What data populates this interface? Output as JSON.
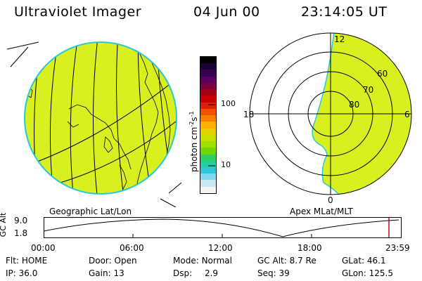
{
  "header": {
    "instrument": "Ultraviolet Imager",
    "date": "04 Jun 00",
    "time": "23:14:05 UT"
  },
  "colorbar": {
    "unit_main": "photon cm",
    "unit_sup1": "-2",
    "unit_mid": "s",
    "unit_sup2": "-1",
    "ticks": [
      "100",
      "10"
    ],
    "colors": [
      "#000000",
      "#1a0033",
      "#3a0050",
      "#5a0060",
      "#7a0040",
      "#a00018",
      "#c80000",
      "#e02000",
      "#f05000",
      "#f88000",
      "#ffb000",
      "#e6d000",
      "#c8e000",
      "#a0e000",
      "#70d800",
      "#30d060",
      "#20d0a0",
      "#30c8d8",
      "#80d8f0",
      "#c8e8f0",
      "#f4f4f4"
    ],
    "fill_color": "#d8f020"
  },
  "panels": {
    "left_caption": "Geographic Lat/Lon",
    "right_caption": "Apex MLat/MLT",
    "polar_labels": {
      "top": "12",
      "bottom": "0",
      "left": "18",
      "right": "6",
      "lat60": "60",
      "lat70": "70",
      "lat80": "80"
    }
  },
  "altitude_plot": {
    "ylabel": "GC Alt",
    "ytick_top": "9.0",
    "ytick_bottom": "1.8",
    "x_ticks": [
      "00:00",
      "06:00",
      "12:00",
      "18:00",
      "23:59"
    ],
    "marker_color": "#cc0000"
  },
  "status": {
    "row1": [
      {
        "label": "Flt:",
        "value": "HOME"
      },
      {
        "label": "Door:",
        "value": "Open"
      },
      {
        "label": "Mode:",
        "value": "Normal"
      },
      {
        "label": "GC Alt:",
        "value": "8.7 Re"
      },
      {
        "label": "GLat:",
        "value": "46.1"
      }
    ],
    "row2": [
      {
        "label": "IP:",
        "value": "36.0"
      },
      {
        "label": "Gain:",
        "value": "13"
      },
      {
        "label": "Dsp:",
        "value": "2.9"
      },
      {
        "label": "Seq:",
        "value": "39"
      },
      {
        "label": "GLon:",
        "value": "125.5"
      }
    ]
  }
}
